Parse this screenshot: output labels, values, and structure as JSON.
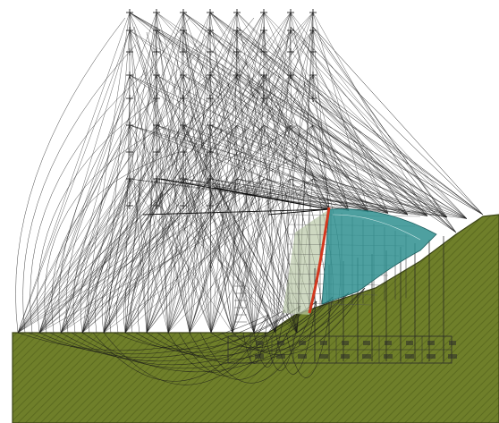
{
  "figure": {
    "description_visible_text": "",
    "colors": {
      "background": "#ffffff",
      "ground": "#6f7f2a",
      "ground_hatch": "#5c6b20",
      "ground_edge": "#3c4517",
      "slip_lines": "#1a1a1a",
      "slice_fill": "#b9c7a6",
      "teal_zone": "#2f8f8f",
      "critical_surface": "#d2381f",
      "grid_markers": "#222222"
    }
  }
}
